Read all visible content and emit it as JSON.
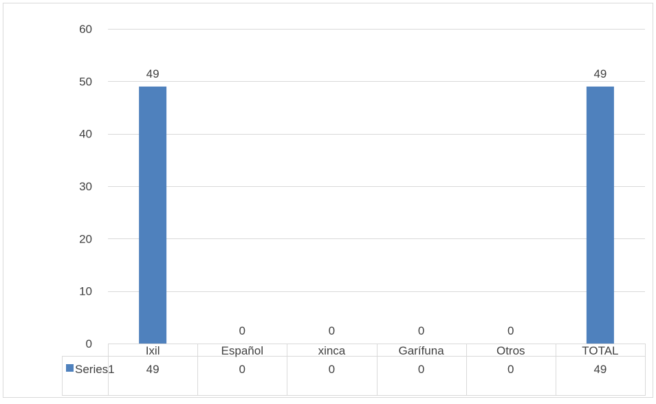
{
  "chart_data": {
    "type": "bar",
    "categories": [
      "Ixil",
      "Español",
      "xinca",
      "Garífuna",
      "Otros",
      "TOTAL"
    ],
    "series": [
      {
        "name": "Series1",
        "values": [
          49,
          0,
          0,
          0,
          0,
          49
        ]
      }
    ],
    "ylim": [
      0,
      60
    ],
    "yticks": [
      "0",
      "10",
      "20",
      "30",
      "40",
      "50",
      "60"
    ],
    "data_labels": [
      "49",
      "0",
      "0",
      "0",
      "0",
      "49"
    ],
    "table_values": [
      "49",
      "0",
      "0",
      "0",
      "0",
      "49"
    ],
    "grid": true,
    "legend_placement": "data-table",
    "colors": {
      "bar": "#4F81BD",
      "grid": "#D9D9D9",
      "text": "#404040",
      "border": "#D9D9D9"
    }
  }
}
